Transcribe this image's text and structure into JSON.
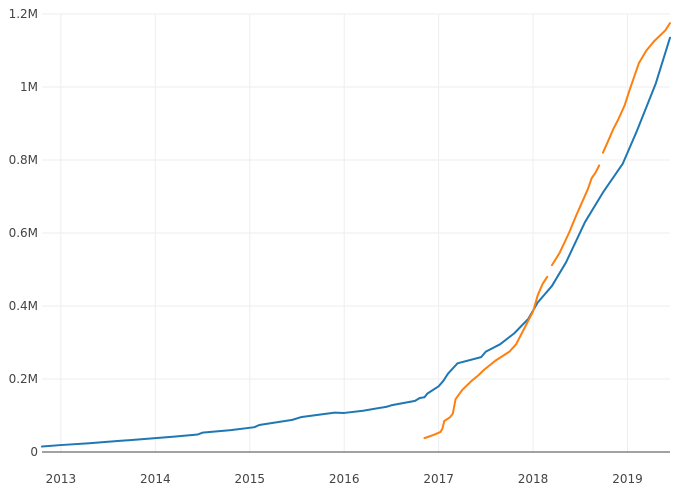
{
  "chart_data": {
    "type": "line",
    "title": "",
    "xlabel": "",
    "ylabel": "",
    "grid": true,
    "legend": "none",
    "xlim": [
      2012.8,
      2019.45
    ],
    "ylim": [
      0,
      1200000
    ],
    "x_ticks": [
      2013,
      2014,
      2015,
      2016,
      2017,
      2018,
      2019
    ],
    "x_tick_labels": [
      "2013",
      "2014",
      "2015",
      "2016",
      "2017",
      "2018",
      "2019"
    ],
    "y_ticks": [
      0,
      200000,
      400000,
      600000,
      800000,
      1000000,
      1200000
    ],
    "y_tick_labels": [
      "0",
      "0.2M",
      "0.4M",
      "0.6M",
      "0.8M",
      "1M",
      "1.2M"
    ],
    "series": [
      {
        "color": "#1f77b4",
        "segments": [
          [
            [
              2012.8,
              15000
            ],
            [
              2013.0,
              19000
            ],
            [
              2013.3,
              24000
            ],
            [
              2013.6,
              30000
            ],
            [
              2013.9,
              36000
            ],
            [
              2014.2,
              42000
            ],
            [
              2014.45,
              48000
            ],
            [
              2014.5,
              53000
            ],
            [
              2014.8,
              60000
            ],
            [
              2015.05,
              68000
            ],
            [
              2015.1,
              74000
            ],
            [
              2015.45,
              88000
            ],
            [
              2015.55,
              96000
            ],
            [
              2015.9,
              108000
            ],
            [
              2016.0,
              107000
            ],
            [
              2016.2,
              113000
            ],
            [
              2016.45,
              124000
            ],
            [
              2016.5,
              128000
            ],
            [
              2016.75,
              140000
            ],
            [
              2016.8,
              148000
            ],
            [
              2016.85,
              150000
            ],
            [
              2016.88,
              160000
            ],
            [
              2017.0,
              180000
            ],
            [
              2017.05,
              195000
            ],
            [
              2017.1,
              215000
            ],
            [
              2017.2,
              243000
            ],
            [
              2017.45,
              260000
            ],
            [
              2017.5,
              275000
            ],
            [
              2017.65,
              295000
            ],
            [
              2017.8,
              325000
            ],
            [
              2017.95,
              365000
            ],
            [
              2018.05,
              410000
            ],
            [
              2018.2,
              455000
            ],
            [
              2018.35,
              520000
            ],
            [
              2018.55,
              630000
            ],
            [
              2018.75,
              715000
            ],
            [
              2018.95,
              790000
            ],
            [
              2019.1,
              880000
            ],
            [
              2019.3,
              1010000
            ],
            [
              2019.45,
              1135000
            ]
          ]
        ]
      },
      {
        "color": "#ff7f0e",
        "segments": [
          [
            [
              2016.85,
              38000
            ],
            [
              2016.95,
              47000
            ],
            [
              2017.02,
              55000
            ],
            [
              2017.04,
              64000
            ],
            [
              2017.06,
              85000
            ],
            [
              2017.12,
              95000
            ],
            [
              2017.15,
              105000
            ],
            [
              2017.18,
              145000
            ],
            [
              2017.25,
              170000
            ],
            [
              2017.35,
              195000
            ],
            [
              2017.42,
              210000
            ],
            [
              2017.48,
              225000
            ],
            [
              2017.6,
              250000
            ],
            [
              2017.75,
              275000
            ],
            [
              2017.82,
              295000
            ],
            [
              2017.9,
              335000
            ],
            [
              2018.0,
              385000
            ],
            [
              2018.05,
              430000
            ],
            [
              2018.1,
              460000
            ],
            [
              2018.15,
              480000
            ]
          ],
          [
            [
              2018.2,
              512000
            ],
            [
              2018.28,
              545000
            ],
            [
              2018.38,
              600000
            ],
            [
              2018.46,
              650000
            ],
            [
              2018.58,
              720000
            ],
            [
              2018.62,
              750000
            ],
            [
              2018.66,
              765000
            ],
            [
              2018.7,
              785000
            ]
          ],
          [
            [
              2018.74,
              820000
            ],
            [
              2018.8,
              855000
            ],
            [
              2018.85,
              885000
            ],
            [
              2018.9,
              910000
            ],
            [
              2018.97,
              950000
            ],
            [
              2019.02,
              990000
            ],
            [
              2019.06,
              1020000
            ],
            [
              2019.08,
              1035000
            ],
            [
              2019.12,
              1065000
            ],
            [
              2019.2,
              1100000
            ],
            [
              2019.28,
              1125000
            ],
            [
              2019.4,
              1155000
            ],
            [
              2019.45,
              1175000
            ]
          ]
        ]
      }
    ]
  }
}
